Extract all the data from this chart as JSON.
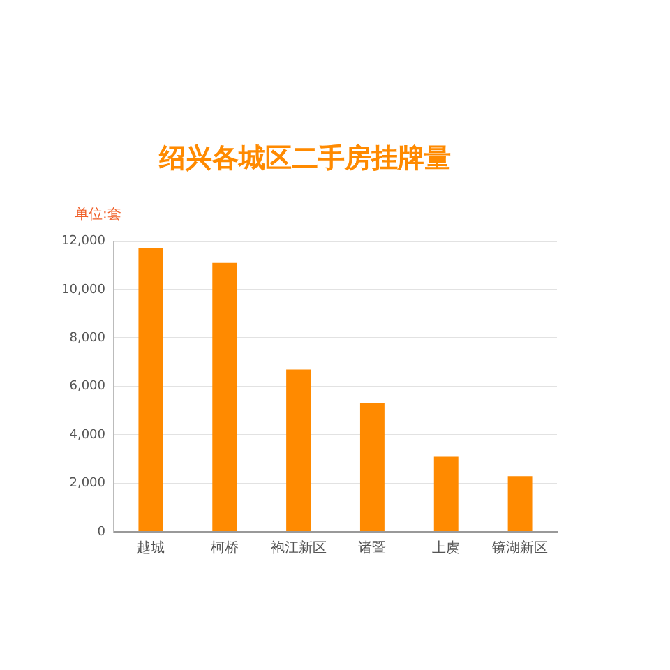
{
  "chart_data": {
    "type": "bar",
    "title": "绍兴各城区二手房挂牌量",
    "ylabel": "单位:套",
    "categories": [
      "越城",
      "柯桥",
      "袍江新区",
      "诸暨",
      "上虞",
      "镜湖新区"
    ],
    "values": [
      11700,
      11100,
      6700,
      5300,
      3100,
      2300
    ],
    "color": "#ff8a00",
    "ylim": [
      0,
      12000
    ],
    "yticks": [
      0,
      {
        "value": 2000,
        "label": "2,000"
      },
      {
        "value": 4000,
        "label": "4,000"
      },
      {
        "value": 6000,
        "label": "6,000"
      },
      {
        "value": 8000,
        "label": "8,000"
      },
      {
        "value": 10000,
        "label": "10,000"
      },
      {
        "value": 12000,
        "label": "12,000"
      }
    ],
    "grid": "y",
    "legend": false
  }
}
